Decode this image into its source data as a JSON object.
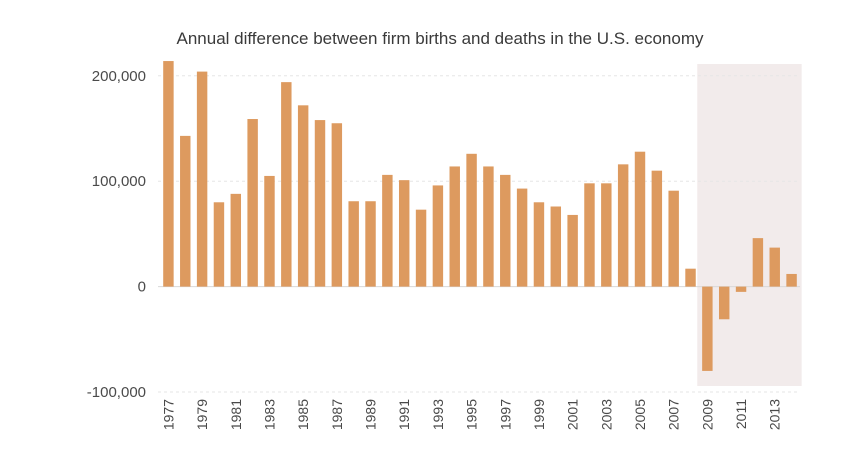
{
  "chart_data": {
    "type": "bar",
    "title": "Annual difference between firm births and deaths in the U.S. economy",
    "xlabel": "",
    "ylabel": "",
    "categories": [
      "1977",
      "1978",
      "1979",
      "1980",
      "1981",
      "1982",
      "1983",
      "1984",
      "1985",
      "1986",
      "1987",
      "1988",
      "1989",
      "1990",
      "1991",
      "1992",
      "1993",
      "1994",
      "1995",
      "1996",
      "1997",
      "1998",
      "1999",
      "2000",
      "2001",
      "2002",
      "2003",
      "2004",
      "2005",
      "2006",
      "2007",
      "2008",
      "2009",
      "2010",
      "2011",
      "2012",
      "2013",
      "2014"
    ],
    "values": [
      214000,
      143000,
      204000,
      80000,
      88000,
      159000,
      105000,
      194000,
      172000,
      158000,
      155000,
      81000,
      81000,
      106000,
      101000,
      73000,
      96000,
      114000,
      126000,
      114000,
      106000,
      93000,
      80000,
      76000,
      68000,
      98000,
      98000,
      116000,
      128000,
      110000,
      91000,
      17000,
      -80000,
      -31000,
      -5000,
      46000,
      37000,
      12000
    ],
    "ylim": [
      -100000,
      215000
    ],
    "yticks": [
      -100000,
      0,
      100000,
      200000
    ],
    "ytick_labels": [
      "-100,000",
      "0",
      "100,000",
      "200,000"
    ],
    "xtick_labels": [
      "1977",
      "1979",
      "1981",
      "1983",
      "1985",
      "1987",
      "1989",
      "1991",
      "1993",
      "1995",
      "1997",
      "1999",
      "2001",
      "2003",
      "2005",
      "2007",
      "2009",
      "2011",
      "2013"
    ],
    "grid": true,
    "legend": "none",
    "highlight_range": [
      "2009",
      "2014"
    ],
    "colors": {
      "bar": "#dd9a5f",
      "highlight_band": "#f2ebeb",
      "text": "#4a4a4a",
      "grid": "#e6e6e6"
    }
  }
}
